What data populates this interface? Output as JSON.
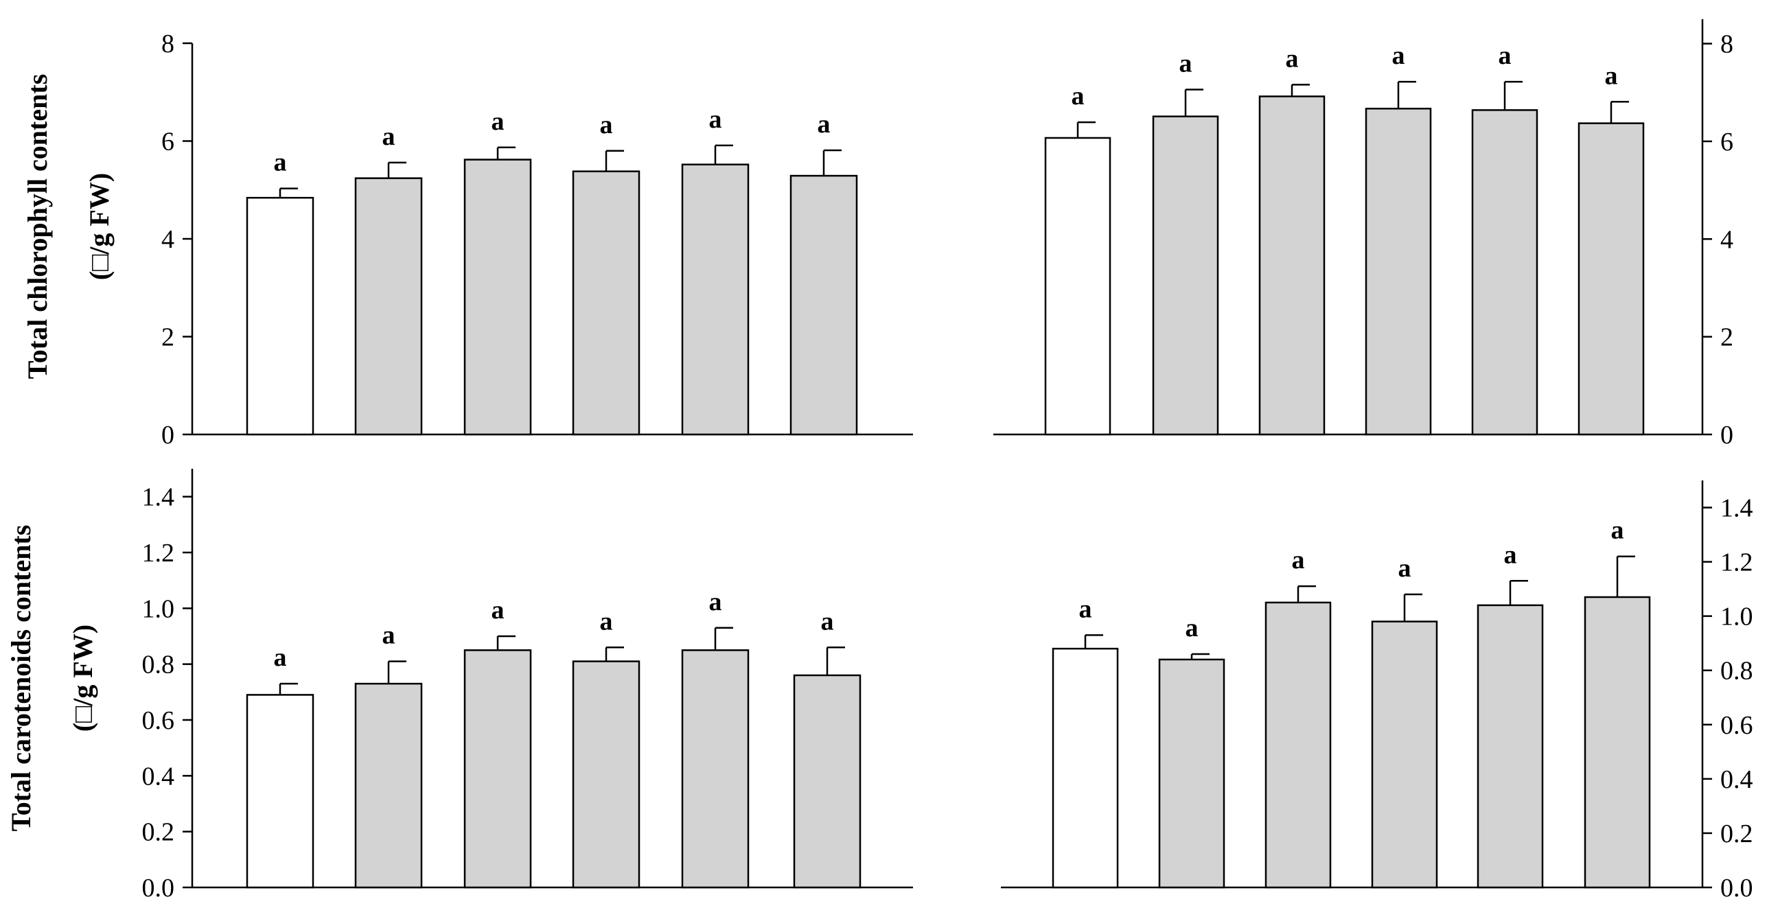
{
  "figure": {
    "ylabels": {
      "top_line1": "Total chlorophyll contents",
      "top_line2": "(□/g FW)",
      "bottom_line1": "Total carotenoids contents",
      "bottom_line2": "(□/g FW)"
    }
  },
  "chart_data": [
    {
      "type": "bar",
      "position": "top-left",
      "ylim": [
        0,
        8
      ],
      "yticks": [
        "0",
        "2",
        "4",
        "6",
        "8"
      ],
      "series": [
        {
          "values": [
            4.84,
            5.24,
            5.62,
            5.38,
            5.52,
            5.29
          ],
          "errors": [
            0.19,
            0.32,
            0.25,
            0.42,
            0.39,
            0.52
          ],
          "fills": [
            "#ffffff",
            "#d3d3d3",
            "#d3d3d3",
            "#d3d3d3",
            "#d3d3d3",
            "#d3d3d3"
          ],
          "labels": [
            "a",
            "a",
            "a",
            "a",
            "a",
            "a"
          ]
        }
      ]
    },
    {
      "type": "bar",
      "position": "top-right",
      "ylim": [
        0,
        8.5
      ],
      "yticks": [
        "0",
        "2",
        "4",
        "6",
        "8"
      ],
      "series": [
        {
          "values": [
            6.07,
            6.51,
            6.92,
            6.67,
            6.64,
            6.37
          ],
          "errors": [
            0.32,
            0.55,
            0.24,
            0.55,
            0.58,
            0.44
          ],
          "fills": [
            "#ffffff",
            "#d3d3d3",
            "#d3d3d3",
            "#d3d3d3",
            "#d3d3d3",
            "#d3d3d3"
          ],
          "labels": [
            "a",
            "a",
            "a",
            "a",
            "a",
            "a"
          ]
        }
      ]
    },
    {
      "type": "bar",
      "position": "bottom-left",
      "ylim": [
        0,
        1.5
      ],
      "yticks": [
        "0.0",
        "0.2",
        "0.4",
        "0.6",
        "0.8",
        "1.0",
        "1.2",
        "1.4"
      ],
      "series": [
        {
          "values": [
            0.69,
            0.73,
            0.85,
            0.81,
            0.85,
            0.76
          ],
          "errors": [
            0.04,
            0.08,
            0.05,
            0.05,
            0.08,
            0.1
          ],
          "fills": [
            "#ffffff",
            "#d3d3d3",
            "#d3d3d3",
            "#d3d3d3",
            "#d3d3d3",
            "#d3d3d3"
          ],
          "labels": [
            "a",
            "a",
            "a",
            "a",
            "a",
            "a"
          ]
        }
      ]
    },
    {
      "type": "bar",
      "position": "bottom-right",
      "ylim": [
        0,
        1.5
      ],
      "yticks": [
        "0.0",
        "0.2",
        "0.4",
        "0.6",
        "0.8",
        "1.0",
        "1.2",
        "1.4"
      ],
      "series": [
        {
          "values": [
            0.88,
            0.84,
            1.05,
            0.98,
            1.04,
            1.07
          ],
          "errors": [
            0.05,
            0.02,
            0.06,
            0.1,
            0.09,
            0.15
          ],
          "fills": [
            "#ffffff",
            "#d3d3d3",
            "#d3d3d3",
            "#d3d3d3",
            "#d3d3d3",
            "#d3d3d3"
          ],
          "labels": [
            "a",
            "a",
            "a",
            "a",
            "a",
            "a"
          ]
        }
      ]
    }
  ]
}
